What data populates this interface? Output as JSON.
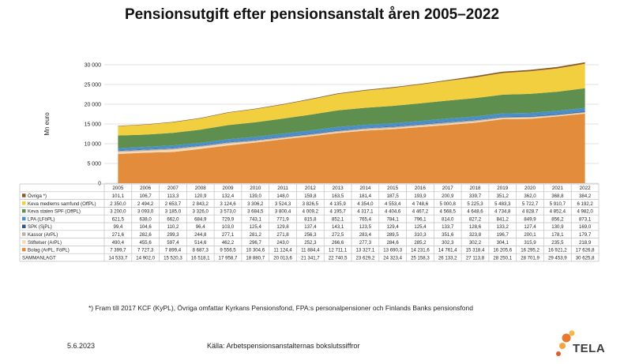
{
  "title": "Pensionsutgift efter pensionsanstalt åren 2005–2022",
  "footnote": "*) Fram till 2017 KCF (KyPL), Övriga omfattar Kyrkans Pensionsfond, FPA:s personalpensioner och Finlands Banks pensionsfond",
  "date": "5.6.2023",
  "source": "Källa: Arbetspensionsanstalternas bokslutssiffror",
  "logo": {
    "text": "TELA"
  },
  "chart_data": {
    "type": "area",
    "ylabel": "Mn euro",
    "ylim": [
      0,
      30000
    ],
    "yticks": [
      "0",
      "5 000",
      "10 000",
      "15 000",
      "20 000",
      "25 000",
      "30 000"
    ],
    "grid": true,
    "categories": [
      "2005",
      "2006",
      "2007",
      "2008",
      "2009",
      "2010",
      "2011",
      "2012",
      "2013",
      "2014",
      "2015",
      "2016",
      "2017",
      "2018",
      "2019",
      "2020",
      "2021",
      "2022"
    ],
    "series": [
      {
        "name": "Övriga *)",
        "color": "#8B5A2B",
        "values": [
          101.1,
          106.7,
          113.3,
          120.9,
          132.4,
          139.0,
          148.0,
          159.8,
          163.5,
          181.4,
          187.5,
          193.9,
          200.9,
          339.7,
          351.2,
          362.0,
          368.8,
          384.2
        ],
        "labels": [
          "101,1",
          "106,7",
          "113,3",
          "120,9",
          "132,4",
          "139,0",
          "148,0",
          "159,8",
          "163,5",
          "181,4",
          "187,5",
          "193,9",
          "200,9",
          "339,7",
          "351,2",
          "362,0",
          "368,8",
          "384,2"
        ]
      },
      {
        "name": "Keva medlems samfund (OffPL)",
        "color": "#F2CF3E",
        "values": [
          2350.0,
          2494.2,
          2653.7,
          2843.2,
          3124.6,
          3306.2,
          3524.3,
          3826.5,
          4135.9,
          4354.0,
          4553.4,
          4748.6,
          5000.8,
          5225.3,
          5483.3,
          5722.7,
          5910.7,
          6192.2
        ],
        "labels": [
          "2 350,0",
          "2 494,2",
          "2 653,7",
          "2 843,2",
          "3 124,6",
          "3 306,2",
          "3 524,3",
          "3 826,5",
          "4 135,9",
          "4 354,0",
          "4 553,4",
          "4 748,6",
          "5 000,8",
          "5 225,3",
          "5 483,3",
          "5 722,7",
          "5 910,7",
          "6 192,2"
        ]
      },
      {
        "name": "Keva staten SPF (OffPL)",
        "color": "#5E8F4E",
        "values": [
          3200.0,
          3093.0,
          3185.0,
          3326.0,
          3573.0,
          3684.5,
          3800.4,
          4009.2,
          4195.7,
          4317.1,
          4404.6,
          4467.2,
          4568.5,
          4648.6,
          4734.8,
          4828.7,
          4852.4,
          4982.0
        ],
        "labels": [
          "3 200,0",
          "3 093,0",
          "3 185,0",
          "3 326,0",
          "3 573,0",
          "3 684,5",
          "3 800,4",
          "4 009,2",
          "4 195,7",
          "4 317,1",
          "4 404,6",
          "4 467,2",
          "4 568,5",
          "4 648,6",
          "4 734,8",
          "4 828,7",
          "4 852,4",
          "4 982,0"
        ]
      },
      {
        "name": "LPA (LFöPL)",
        "color": "#4A90C8",
        "values": [
          621.5,
          638.0,
          662.0,
          684.9,
          729.9,
          743.1,
          771.9,
          815.8,
          852.1,
          765.4,
          784.1,
          796.1,
          814.0,
          827.2,
          841.2,
          849.9,
          856.2,
          873.1
        ],
        "labels": [
          "621,5",
          "638,0",
          "662,0",
          "684,9",
          "729,9",
          "743,1",
          "771,9",
          "815,8",
          "852,1",
          "765,4",
          "784,1",
          "796,1",
          "814,0",
          "827,2",
          "841,2",
          "849,9",
          "856,2",
          "873,1"
        ]
      },
      {
        "name": "SPK (SjPL)",
        "color": "#33508A",
        "values": [
          99.4,
          104.6,
          110.2,
          96.4,
          103.0,
          125.4,
          129.8,
          137.4,
          143.1,
          123.5,
          129.4,
          125.4,
          133.7,
          128.6,
          133.2,
          127.4,
          130.9,
          169.0
        ],
        "labels": [
          "99,4",
          "104,6",
          "110,2",
          "96,4",
          "103,0",
          "125,4",
          "129,8",
          "137,4",
          "143,1",
          "123,5",
          "129,4",
          "125,4",
          "133,7",
          "128,6",
          "133,2",
          "127,4",
          "130,9",
          "169,0"
        ]
      },
      {
        "name": "Kassor (ArPL)",
        "color": "#B7B2AC",
        "values": [
          271.6,
          282.6,
          299.3,
          244.8,
          277.1,
          281.2,
          271.8,
          256.3,
          272.5,
          283.4,
          289.5,
          310.3,
          351.6,
          323.8,
          196.7,
          200.1,
          178.1,
          179.7
        ],
        "labels": [
          "271,6",
          "282,6",
          "299,3",
          "244,8",
          "277,1",
          "281,2",
          "271,8",
          "256,3",
          "272,5",
          "283,4",
          "289,5",
          "310,3",
          "351,6",
          "323,8",
          "196,7",
          "200,1",
          "178,1",
          "179,7"
        ]
      },
      {
        "name": "Stiftelser (ArPL)",
        "color": "#F6D9B4",
        "values": [
          490.4,
          455.6,
          597.4,
          514.6,
          462.2,
          296.7,
          243.0,
          252.3,
          266.6,
          277.3,
          284.6,
          285.2,
          302.3,
          302.2,
          304.1,
          315.9,
          235.5,
          218.9
        ],
        "labels": [
          "490,4",
          "455,6",
          "597,4",
          "514,6",
          "462,2",
          "296,7",
          "243,0",
          "252,3",
          "266,6",
          "277,3",
          "284,6",
          "285,2",
          "302,3",
          "302,2",
          "304,1",
          "315,9",
          "235,5",
          "218,9"
        ]
      },
      {
        "name": "Bolag (ArPL, FöPL)",
        "color": "#E38D3C",
        "values": [
          7399.7,
          7727.3,
          7899.4,
          8687.3,
          9556.5,
          10304.6,
          11124.4,
          11884.4,
          12711.1,
          13327.1,
          13690.3,
          14231.6,
          14761.4,
          15318.4,
          16205.6,
          16295.2,
          16921.2,
          17626.8
        ],
        "labels": [
          "7 399,7",
          "7 727,3",
          "7 899,4",
          "8 687,3",
          "9 556,5",
          "10 304,6",
          "11 124,4",
          "11 884,4",
          "12 711,1",
          "13 327,1",
          "13 690,3",
          "14 231,6",
          "14 761,4",
          "15 318,4",
          "16 205,6",
          "16 295,2",
          "16 921,2",
          "17 626,8"
        ]
      }
    ],
    "total": {
      "name": "SAMMANLAGT",
      "values": [
        14533.7,
        14902.0,
        15520.3,
        16518.1,
        17958.7,
        18880.7,
        20013.6,
        21341.7,
        22740.5,
        23629.2,
        24323.4,
        25158.3,
        26133.2,
        27113.8,
        28250.1,
        28701.9,
        29453.9,
        30625.8
      ],
      "labels": [
        "14 533,7",
        "14 902,0",
        "15 520,3",
        "16 518,1",
        "17 958,7",
        "18 880,7",
        "20 013,6",
        "21 341,7",
        "22 740,5",
        "23 629,2",
        "24 323,4",
        "25 158,3",
        "26 133,2",
        "27 113,8",
        "28 250,1",
        "28 701,9",
        "29 453,9",
        "30 625,8"
      ]
    }
  }
}
